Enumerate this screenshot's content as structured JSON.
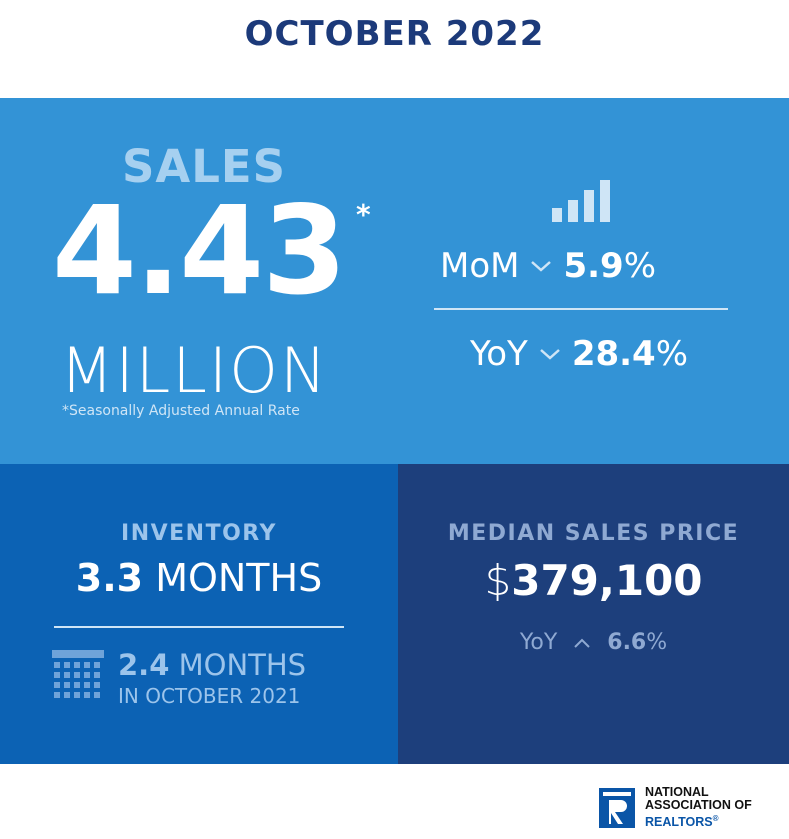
{
  "title": "OCTOBER 2022",
  "sales": {
    "label": "SALES",
    "value": "4.43",
    "asterisk": "*",
    "unit": "MILLION",
    "footnote": "*Seasonally Adjusted Annual Rate",
    "mom": {
      "label": "MoM",
      "direction": "down",
      "value_bold": "5.9",
      "value_unit": "%"
    },
    "yoy": {
      "label": "YoY",
      "direction": "down",
      "value_bold": "28.4",
      "value_unit": "%"
    }
  },
  "inventory": {
    "label": "INVENTORY",
    "value_bold": "3.3",
    "value_unit": "MONTHS",
    "prev_bold": "2.4",
    "prev_unit": "MONTHS",
    "prev_caption": "IN OCTOBER 2021"
  },
  "median_price": {
    "label": "MEDIAN SALES PRICE",
    "dollar": "$",
    "value": "379,100",
    "yoy": {
      "label": "YoY",
      "direction": "up",
      "value_bold": "6.6",
      "value_unit": "%"
    }
  },
  "logo": {
    "line1": "NATIONAL",
    "line2": "ASSOCIATION OF",
    "line3": "REALTORS",
    "reg": "®"
  },
  "colors": {
    "title": "#1c3a7a",
    "top_panel": "#3393d6",
    "inventory_panel": "#0c62b4",
    "price_panel": "#1d3f7c"
  },
  "icons": [
    "bar-chart-icon",
    "chevron-down-icon",
    "chevron-up-icon",
    "calendar-icon",
    "realtor-r-logo"
  ]
}
